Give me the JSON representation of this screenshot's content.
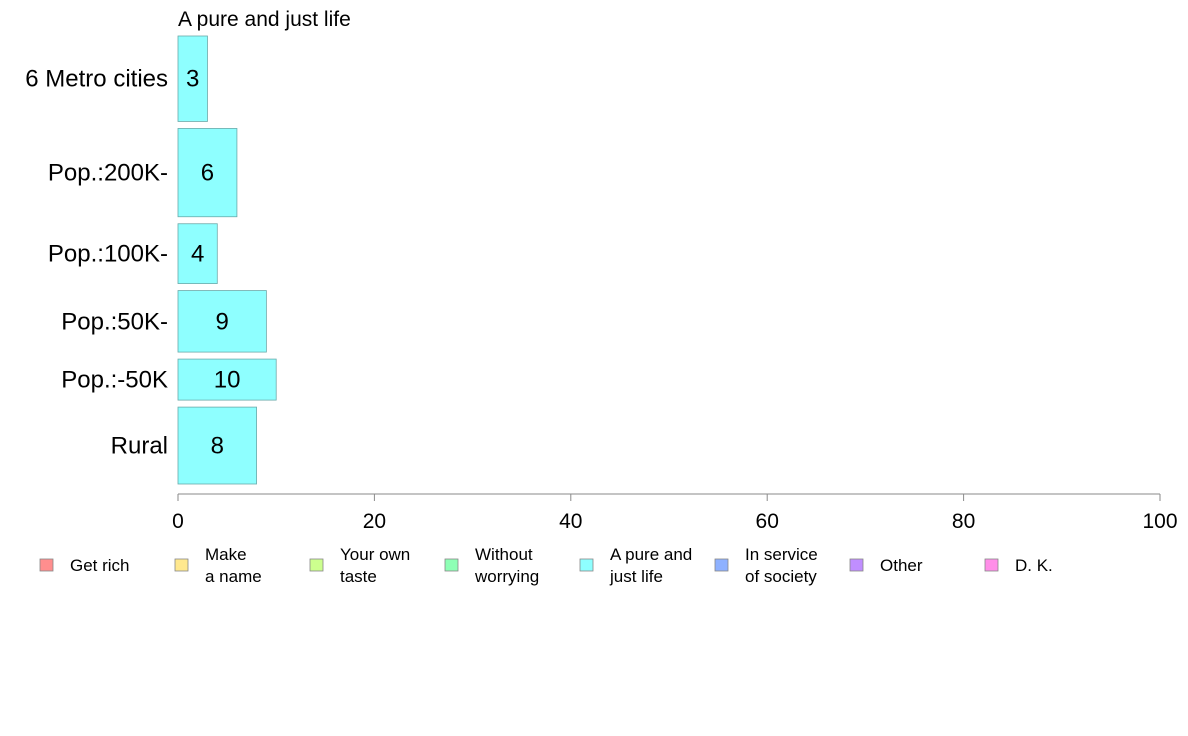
{
  "chart_data": {
    "type": "bar",
    "orientation": "horizontal",
    "title": "A pure and just life",
    "categories": [
      "6 Metro cities",
      "Pop.:200K-",
      "Pop.:100K-",
      "Pop.:50K-",
      "Pop.:-50K",
      "Rural"
    ],
    "series": [
      {
        "name": "A pure and just life",
        "values": [
          3,
          6,
          4,
          9,
          10,
          8
        ],
        "color": "#8effff"
      }
    ],
    "bar_labels": [
      "3",
      "6",
      "4",
      "9",
      "10",
      "8"
    ],
    "bar_share": [
      0.15,
      0.155,
      0.105,
      0.108,
      0.072,
      0.135
    ],
    "xlim": [
      0,
      100
    ],
    "xticks": [
      0,
      20,
      40,
      60,
      80,
      100
    ],
    "xtick_labels": [
      "0",
      "20",
      "40",
      "60",
      "80",
      "100"
    ],
    "grid": false,
    "legend": {
      "placement": "bottom",
      "entries": [
        {
          "lines": [
            "Get rich"
          ],
          "color": "#ff8e8e"
        },
        {
          "lines": [
            "Make",
            "a name"
          ],
          "color": "#ffe88e"
        },
        {
          "lines": [
            "Your own",
            "taste"
          ],
          "color": "#ccff8e"
        },
        {
          "lines": [
            "Without",
            "worrying"
          ],
          "color": "#8effb5"
        },
        {
          "lines": [
            "A pure and",
            "just life"
          ],
          "color": "#8effff"
        },
        {
          "lines": [
            "In service",
            "of society"
          ],
          "color": "#8eb1ff"
        },
        {
          "lines": [
            "Other"
          ],
          "color": "#c08eff"
        },
        {
          "lines": [
            "D. K."
          ],
          "color": "#ff8ee8"
        }
      ]
    }
  }
}
